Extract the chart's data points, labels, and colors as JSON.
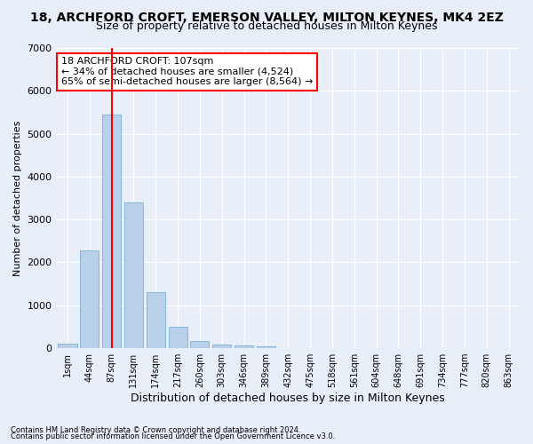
{
  "title": "18, ARCHFORD CROFT, EMERSON VALLEY, MILTON KEYNES, MK4 2EZ",
  "subtitle": "Size of property relative to detached houses in Milton Keynes",
  "xlabel": "Distribution of detached houses by size in Milton Keynes",
  "ylabel": "Number of detached properties",
  "footnote1": "Contains HM Land Registry data © Crown copyright and database right 2024.",
  "footnote2": "Contains public sector information licensed under the Open Government Licence v3.0.",
  "bar_labels": [
    "1sqm",
    "44sqm",
    "87sqm",
    "131sqm",
    "174sqm",
    "217sqm",
    "260sqm",
    "303sqm",
    "346sqm",
    "389sqm",
    "432sqm",
    "475sqm",
    "518sqm",
    "561sqm",
    "604sqm",
    "648sqm",
    "691sqm",
    "734sqm",
    "777sqm",
    "820sqm",
    "863sqm"
  ],
  "bar_values": [
    100,
    2280,
    5450,
    3400,
    1310,
    500,
    175,
    75,
    60,
    50,
    0,
    0,
    0,
    0,
    0,
    0,
    0,
    0,
    0,
    0,
    0
  ],
  "bar_color": "#b8d0ea",
  "bar_edgecolor": "#7aafd4",
  "vline_bin_index": 2,
  "vline_color": "red",
  "ylim": [
    0,
    7000
  ],
  "annotation_text": "18 ARCHFORD CROFT: 107sqm\n← 34% of detached houses are smaller (4,524)\n65% of semi-detached houses are larger (8,564) →",
  "annotation_box_color": "white",
  "annotation_box_edgecolor": "red",
  "background_color": "#e8eef8",
  "grid_color": "white",
  "title_fontsize": 10,
  "subtitle_fontsize": 9,
  "yticks": [
    0,
    1000,
    2000,
    3000,
    4000,
    5000,
    6000,
    7000
  ]
}
